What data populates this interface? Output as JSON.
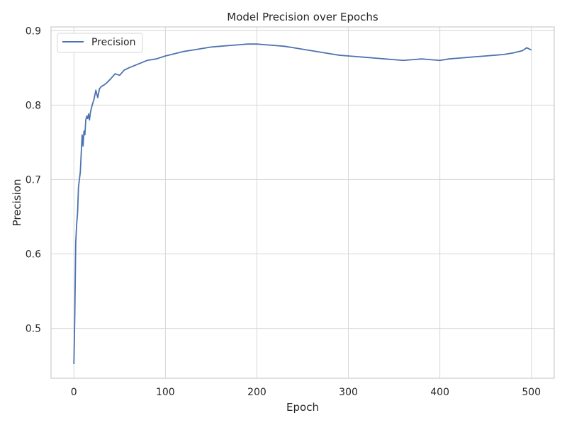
{
  "chart_data": {
    "type": "line",
    "title": "Model Precision over Epochs",
    "xlabel": "Epoch",
    "ylabel": "Precision",
    "xlim": [
      -25,
      525
    ],
    "ylim": [
      0.433,
      0.905
    ],
    "xticks": [
      0,
      100,
      200,
      300,
      400,
      500
    ],
    "yticks": [
      0.5,
      0.6,
      0.7,
      0.8,
      0.9
    ],
    "grid": true,
    "legend": {
      "placement": "top-left"
    },
    "colors": {
      "series": "#4c72b0",
      "grid": "#d6d6d6",
      "spine": "#cccccc",
      "text": "#262626"
    },
    "series": [
      {
        "name": "Precision",
        "x": [
          0,
          1,
          2,
          3,
          4,
          5,
          6,
          7,
          8,
          9,
          10,
          11,
          12,
          13,
          14,
          15,
          16,
          17,
          18,
          19,
          20,
          22,
          24,
          26,
          28,
          30,
          33,
          36,
          40,
          45,
          50,
          55,
          60,
          70,
          80,
          90,
          100,
          110,
          120,
          130,
          140,
          150,
          160,
          170,
          180,
          190,
          200,
          210,
          220,
          230,
          240,
          250,
          260,
          270,
          280,
          290,
          300,
          310,
          320,
          330,
          340,
          350,
          360,
          370,
          380,
          390,
          400,
          410,
          420,
          430,
          440,
          450,
          460,
          470,
          480,
          490,
          495,
          500
        ],
        "values": [
          0.452,
          0.52,
          0.615,
          0.64,
          0.655,
          0.69,
          0.7,
          0.71,
          0.735,
          0.76,
          0.745,
          0.765,
          0.76,
          0.78,
          0.785,
          0.782,
          0.788,
          0.78,
          0.79,
          0.795,
          0.8,
          0.808,
          0.82,
          0.81,
          0.822,
          0.825,
          0.827,
          0.83,
          0.835,
          0.842,
          0.84,
          0.847,
          0.85,
          0.855,
          0.86,
          0.862,
          0.866,
          0.869,
          0.872,
          0.874,
          0.876,
          0.878,
          0.879,
          0.88,
          0.881,
          0.882,
          0.882,
          0.881,
          0.88,
          0.879,
          0.877,
          0.875,
          0.873,
          0.871,
          0.869,
          0.867,
          0.866,
          0.865,
          0.864,
          0.863,
          0.862,
          0.861,
          0.86,
          0.861,
          0.862,
          0.861,
          0.86,
          0.862,
          0.863,
          0.864,
          0.865,
          0.866,
          0.867,
          0.868,
          0.87,
          0.873,
          0.877,
          0.874
        ]
      }
    ]
  }
}
